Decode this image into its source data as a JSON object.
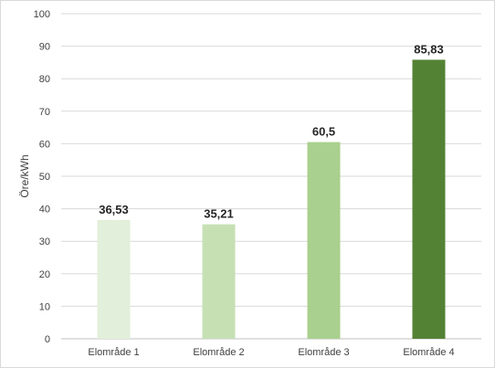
{
  "chart_data": {
    "type": "bar",
    "categories": [
      "Elområde 1",
      "Elområde 2",
      "Elområde 3",
      "Elområde 4"
    ],
    "values": [
      36.53,
      35.21,
      60.5,
      85.83
    ],
    "data_labels": [
      "36,53",
      "35,21",
      "60,5",
      "85,83"
    ],
    "colors": [
      "#e2efda",
      "#c6e0b4",
      "#a9d08e",
      "#548235"
    ],
    "title": "",
    "xlabel": "",
    "ylabel": "Öre/kWh",
    "ylim": [
      0,
      100
    ],
    "yticks": [
      "0",
      "10",
      "20",
      "30",
      "40",
      "50",
      "60",
      "70",
      "80",
      "90",
      "100"
    ],
    "grid": true,
    "legend": "none"
  }
}
